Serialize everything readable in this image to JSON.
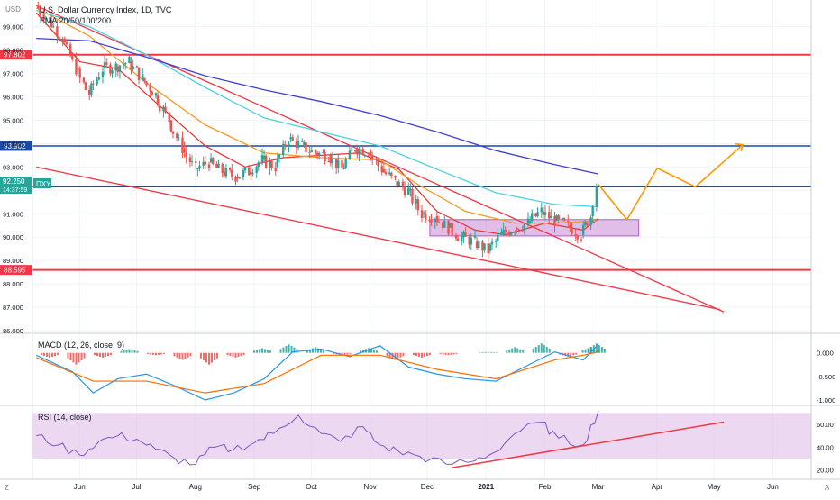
{
  "header": {
    "currency": "USD",
    "title": "U.S. Dollar Currency Index, 1D, TVC",
    "ema_label": "EMA 20/50/100/200"
  },
  "colors": {
    "up": "#26a69a",
    "down": "#ef5350",
    "ema20": "#e53935",
    "ema50": "#f59a23",
    "ema100": "#4dd0e1",
    "ema200": "#3f3fd1",
    "red_line": "#f23645",
    "blue_line": "#1a4aa8",
    "projection": "#ff9800",
    "zone": "#9c27b0",
    "macd": "#2196f3",
    "signal": "#ff6d00",
    "rsi": "#7e57c2",
    "rsi_band": "#e1bee7"
  },
  "price_tag": {
    "ticker": "DXY",
    "price": "92.250",
    "countdown": "14:37:59"
  },
  "chart_data": [
    {
      "type": "candlestick",
      "title": "U.S. Dollar Currency Index, 1D, TVC",
      "ylim": [
        86.0,
        100.0
      ],
      "y_ticks": [
        "86.000",
        "87.000",
        "88.000",
        "89.000",
        "90.000",
        "91.000",
        "92.000",
        "93.000",
        "94.000",
        "95.000",
        "96.000",
        "97.000",
        "98.000",
        "99.000"
      ],
      "x_ticks": [
        "Jun",
        "Jul",
        "Aug",
        "Sep",
        "Oct",
        "Nov",
        "Dec",
        "2021",
        "Feb",
        "Mar",
        "Apr",
        "May",
        "Jun"
      ],
      "x_range": [
        "2020-05-11",
        "2021-06-25"
      ],
      "horizontal_levels": [
        {
          "label": "97.802",
          "value": 97.802,
          "style": "red"
        },
        {
          "label": "93.902",
          "value": 93.902,
          "style": "blue"
        },
        {
          "label": "92.154",
          "value": 92.154,
          "style": "blue"
        },
        {
          "label": "88.595",
          "value": 88.595,
          "style": "red"
        }
      ],
      "trendlines": [
        {
          "from": [
            "2020-05-13",
            99.9
          ],
          "to": [
            "2021-05-10",
            86.8
          ]
        },
        {
          "from": [
            "2020-05-13",
            93.0
          ],
          "to": [
            "2021-05-08",
            86.9
          ]
        }
      ],
      "consolidation_zone": {
        "from": "2020-12-10",
        "to": "2021-03-30",
        "low": 90.05,
        "high": 90.75
      },
      "projection_path": [
        [
          "2021-03-05",
          92.25
        ],
        [
          "2021-03-20",
          90.75
        ],
        [
          "2021-04-05",
          92.95
        ],
        [
          "2021-04-25",
          92.15
        ],
        [
          "2021-05-20",
          93.95
        ]
      ],
      "ema_lines": [
        {
          "name": "EMA 20",
          "points": [
            [
              "2020-05-13",
              99.6
            ],
            [
              "2020-06-05",
              97.5
            ],
            [
              "2020-06-25",
              97.2
            ],
            [
              "2020-07-20",
              95.4
            ],
            [
              "2020-08-10",
              93.9
            ],
            [
              "2020-08-31",
              93.0
            ],
            [
              "2020-09-20",
              93.4
            ],
            [
              "2020-10-10",
              93.5
            ],
            [
              "2020-10-30",
              93.6
            ],
            [
              "2020-11-20",
              92.9
            ],
            [
              "2020-12-10",
              91.1
            ],
            [
              "2020-12-30",
              90.3
            ],
            [
              "2021-01-15",
              90.1
            ],
            [
              "2021-02-05",
              90.6
            ],
            [
              "2021-02-25",
              90.3
            ],
            [
              "2021-03-05",
              90.8
            ]
          ]
        },
        {
          "name": "EMA 50",
          "points": [
            [
              "2020-05-13",
              99.8
            ],
            [
              "2020-06-10",
              98.6
            ],
            [
              "2020-07-10",
              96.6
            ],
            [
              "2020-08-10",
              94.8
            ],
            [
              "2020-09-10",
              93.6
            ],
            [
              "2020-10-10",
              93.4
            ],
            [
              "2020-11-10",
              93.3
            ],
            [
              "2020-12-01",
              92.2
            ],
            [
              "2020-12-25",
              91.1
            ],
            [
              "2021-01-20",
              90.6
            ],
            [
              "2021-02-10",
              90.6
            ],
            [
              "2021-03-05",
              90.7
            ]
          ]
        },
        {
          "name": "EMA 100",
          "points": [
            [
              "2020-05-13",
              99.7
            ],
            [
              "2020-06-10",
              99.0
            ],
            [
              "2020-07-10",
              97.8
            ],
            [
              "2020-08-10",
              96.4
            ],
            [
              "2020-09-10",
              95.1
            ],
            [
              "2020-10-10",
              94.5
            ],
            [
              "2020-11-10",
              93.9
            ],
            [
              "2020-12-10",
              92.9
            ],
            [
              "2021-01-10",
              91.9
            ],
            [
              "2021-02-10",
              91.4
            ],
            [
              "2021-03-05",
              91.3
            ]
          ]
        },
        {
          "name": "EMA 200",
          "points": [
            [
              "2020-05-13",
              98.5
            ],
            [
              "2020-06-10",
              98.4
            ],
            [
              "2020-07-10",
              97.7
            ],
            [
              "2020-08-10",
              96.9
            ],
            [
              "2020-09-10",
              96.3
            ],
            [
              "2020-10-10",
              95.8
            ],
            [
              "2020-11-10",
              95.2
            ],
            [
              "2020-12-10",
              94.5
            ],
            [
              "2021-01-10",
              93.7
            ],
            [
              "2021-02-10",
              93.1
            ],
            [
              "2021-03-05",
              92.7
            ]
          ]
        }
      ],
      "ohlc_close_path": [
        [
          "2020-05-13",
          99.9
        ],
        [
          "2020-05-20",
          99.3
        ],
        [
          "2020-05-27",
          98.5
        ],
        [
          "2020-06-03",
          97.2
        ],
        [
          "2020-06-10",
          96.1
        ],
        [
          "2020-06-17",
          97.2
        ],
        [
          "2020-06-24",
          97.3
        ],
        [
          "2020-07-01",
          97.5
        ],
        [
          "2020-07-08",
          96.8
        ],
        [
          "2020-07-15",
          96.1
        ],
        [
          "2020-07-22",
          95.0
        ],
        [
          "2020-07-29",
          93.8
        ],
        [
          "2020-08-05",
          92.9
        ],
        [
          "2020-08-12",
          93.2
        ],
        [
          "2020-08-19",
          92.8
        ],
        [
          "2020-08-26",
          92.6
        ],
        [
          "2020-09-02",
          92.8
        ],
        [
          "2020-09-09",
          93.3
        ],
        [
          "2020-09-16",
          93.0
        ],
        [
          "2020-09-23",
          94.2
        ],
        [
          "2020-09-30",
          93.9
        ],
        [
          "2020-10-07",
          93.6
        ],
        [
          "2020-10-14",
          93.5
        ],
        [
          "2020-10-21",
          92.9
        ],
        [
          "2020-10-28",
          93.8
        ],
        [
          "2020-11-04",
          93.7
        ],
        [
          "2020-11-11",
          92.9
        ],
        [
          "2020-11-18",
          92.4
        ],
        [
          "2020-11-25",
          92.0
        ],
        [
          "2020-12-02",
          91.0
        ],
        [
          "2020-12-09",
          90.9
        ],
        [
          "2020-12-16",
          90.4
        ],
        [
          "2020-12-23",
          90.0
        ],
        [
          "2020-12-30",
          89.8
        ],
        [
          "2021-01-06",
          89.4
        ],
        [
          "2021-01-13",
          90.1
        ],
        [
          "2021-01-20",
          90.4
        ],
        [
          "2021-01-27",
          90.6
        ],
        [
          "2021-02-03",
          91.1
        ],
        [
          "2021-02-10",
          90.7
        ],
        [
          "2021-02-17",
          90.5
        ],
        [
          "2021-02-24",
          90.1
        ],
        [
          "2021-03-01",
          90.9
        ],
        [
          "2021-03-04",
          92.25
        ]
      ]
    },
    {
      "type": "histogram",
      "title": "MACD (12, 26, close, 9)",
      "ylim": [
        -1.0,
        0.3
      ],
      "y_ticks": [
        "0.000",
        "-0.500",
        "-1.000"
      ],
      "macd_line": [
        [
          "2020-05-13",
          -0.05
        ],
        [
          "2020-06-01",
          -0.4
        ],
        [
          "2020-06-12",
          -0.85
        ],
        [
          "2020-06-25",
          -0.55
        ],
        [
          "2020-07-10",
          -0.45
        ],
        [
          "2020-07-25",
          -0.7
        ],
        [
          "2020-08-10",
          -1.0
        ],
        [
          "2020-08-25",
          -0.85
        ],
        [
          "2020-09-10",
          -0.55
        ],
        [
          "2020-09-25",
          0.02
        ],
        [
          "2020-10-10",
          0.08
        ],
        [
          "2020-10-25",
          -0.08
        ],
        [
          "2020-11-10",
          0.15
        ],
        [
          "2020-11-25",
          -0.3
        ],
        [
          "2020-12-10",
          -0.45
        ],
        [
          "2020-12-25",
          -0.55
        ],
        [
          "2021-01-10",
          -0.6
        ],
        [
          "2021-01-25",
          -0.3
        ],
        [
          "2021-02-10",
          0.02
        ],
        [
          "2021-02-25",
          -0.15
        ],
        [
          "2021-03-05",
          0.18
        ]
      ],
      "signal_line": [
        [
          "2020-05-13",
          -0.1
        ],
        [
          "2020-06-12",
          -0.6
        ],
        [
          "2020-07-10",
          -0.6
        ],
        [
          "2020-08-10",
          -0.85
        ],
        [
          "2020-09-10",
          -0.65
        ],
        [
          "2020-10-10",
          -0.05
        ],
        [
          "2020-11-10",
          -0.05
        ],
        [
          "2020-12-10",
          -0.35
        ],
        [
          "2021-01-10",
          -0.55
        ],
        [
          "2021-02-10",
          -0.15
        ],
        [
          "2021-02-25",
          -0.05
        ],
        [
          "2021-03-05",
          0.02
        ]
      ],
      "histogram": [
        [
          "2020-05-20",
          -0.1
        ],
        [
          "2020-06-03",
          -0.25
        ],
        [
          "2020-06-17",
          -0.1
        ],
        [
          "2020-07-01",
          0.08
        ],
        [
          "2020-07-15",
          -0.05
        ],
        [
          "2020-07-29",
          -0.15
        ],
        [
          "2020-08-12",
          -0.25
        ],
        [
          "2020-08-26",
          -0.1
        ],
        [
          "2020-09-09",
          0.1
        ],
        [
          "2020-09-23",
          0.18
        ],
        [
          "2020-10-07",
          0.12
        ],
        [
          "2020-10-21",
          -0.05
        ],
        [
          "2020-11-04",
          0.1
        ],
        [
          "2020-11-18",
          -0.15
        ],
        [
          "2020-12-02",
          -0.1
        ],
        [
          "2020-12-16",
          -0.05
        ],
        [
          "2021-01-06",
          0.02
        ],
        [
          "2021-01-20",
          0.12
        ],
        [
          "2021-02-03",
          0.2
        ],
        [
          "2021-02-17",
          -0.08
        ],
        [
          "2021-03-01",
          0.12
        ],
        [
          "2021-03-04",
          0.2
        ]
      ]
    },
    {
      "type": "line",
      "title": "RSI (14, close)",
      "ylim": [
        15,
        75
      ],
      "y_ticks": [
        "60.00",
        "40.00",
        "20.00"
      ],
      "band": [
        30,
        70
      ],
      "rsi_line": [
        [
          "2020-05-13",
          50
        ],
        [
          "2020-05-25",
          42
        ],
        [
          "2020-06-05",
          33
        ],
        [
          "2020-06-15",
          45
        ],
        [
          "2020-06-25",
          50
        ],
        [
          "2020-07-05",
          47
        ],
        [
          "2020-07-15",
          38
        ],
        [
          "2020-07-25",
          30
        ],
        [
          "2020-08-05",
          25
        ],
        [
          "2020-08-15",
          40
        ],
        [
          "2020-08-25",
          38
        ],
        [
          "2020-09-05",
          44
        ],
        [
          "2020-09-15",
          52
        ],
        [
          "2020-09-28",
          68
        ],
        [
          "2020-10-10",
          52
        ],
        [
          "2020-10-20",
          45
        ],
        [
          "2020-11-01",
          58
        ],
        [
          "2020-11-10",
          42
        ],
        [
          "2020-11-20",
          36
        ],
        [
          "2020-12-01",
          32
        ],
        [
          "2020-12-15",
          25
        ],
        [
          "2020-12-30",
          28
        ],
        [
          "2021-01-10",
          36
        ],
        [
          "2021-01-20",
          52
        ],
        [
          "2021-02-03",
          62
        ],
        [
          "2021-02-12",
          48
        ],
        [
          "2021-02-25",
          42
        ],
        [
          "2021-03-05",
          72
        ]
      ],
      "trendline": {
        "from": [
          "2020-12-18",
          22
        ],
        "to": [
          "2021-05-10",
          62
        ]
      }
    }
  ],
  "axis_bottom_left": "Z",
  "axis_bottom_right": "A"
}
